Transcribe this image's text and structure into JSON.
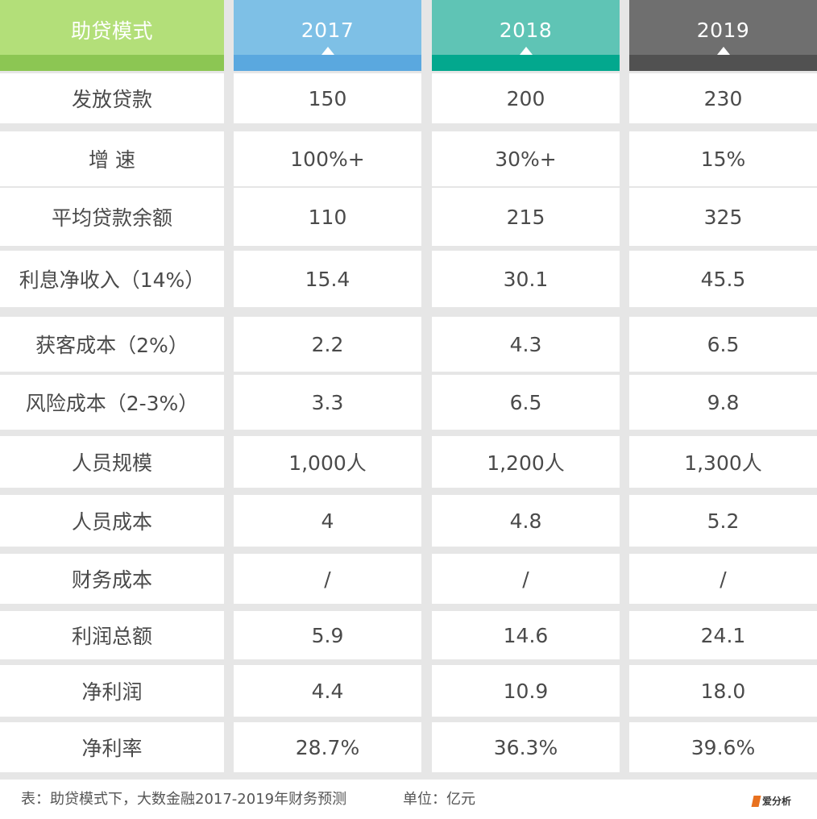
{
  "header": {
    "label": "助贷模式",
    "years": [
      "2017",
      "2018",
      "2019"
    ]
  },
  "rows": [
    {
      "label": "发放贷款",
      "v2017": "150",
      "v2018": "200",
      "v2019": "230"
    },
    {
      "label": "增  速",
      "v2017": "100%+",
      "v2018": "30%+",
      "v2019": "15%"
    },
    {
      "label": "平均贷款余额",
      "v2017": "110",
      "v2018": "215",
      "v2019": "325"
    },
    {
      "label": "利息净收入（14%）",
      "v2017": "15.4",
      "v2018": "30.1",
      "v2019": "45.5"
    },
    {
      "label": "获客成本（2%）",
      "v2017": "2.2",
      "v2018": "4.3",
      "v2019": "6.5"
    },
    {
      "label": "风险成本（2-3%）",
      "v2017": "3.3",
      "v2018": "6.5",
      "v2019": "9.8"
    },
    {
      "label": "人员规模",
      "v2017": "1,000人",
      "v2018": "1,200人",
      "v2019": "1,300人"
    },
    {
      "label": "人员成本",
      "v2017": "4",
      "v2018": "4.8",
      "v2019": "5.2"
    },
    {
      "label": "财务成本",
      "v2017": "/",
      "v2018": "/",
      "v2019": "/"
    },
    {
      "label": "利润总额",
      "v2017": "5.9",
      "v2018": "14.6",
      "v2019": "24.1"
    },
    {
      "label": "净利润",
      "v2017": "4.4",
      "v2018": "10.9",
      "v2019": "18.0"
    },
    {
      "label": "净利率",
      "v2017": "28.7%",
      "v2018": "36.3%",
      "v2019": "39.6%"
    }
  ],
  "footer": {
    "caption": "表：助贷模式下，大数金融2017-2019年财务预测",
    "unit": "单位：亿元",
    "logo": "爱分析"
  },
  "colors": {
    "label_header": "#b3df79",
    "y2017_header": "#7ec0e6",
    "y2018_header": "#5fc4b5",
    "y2019_header": "#6f6f6f",
    "logo_accent": "#e8711f"
  }
}
